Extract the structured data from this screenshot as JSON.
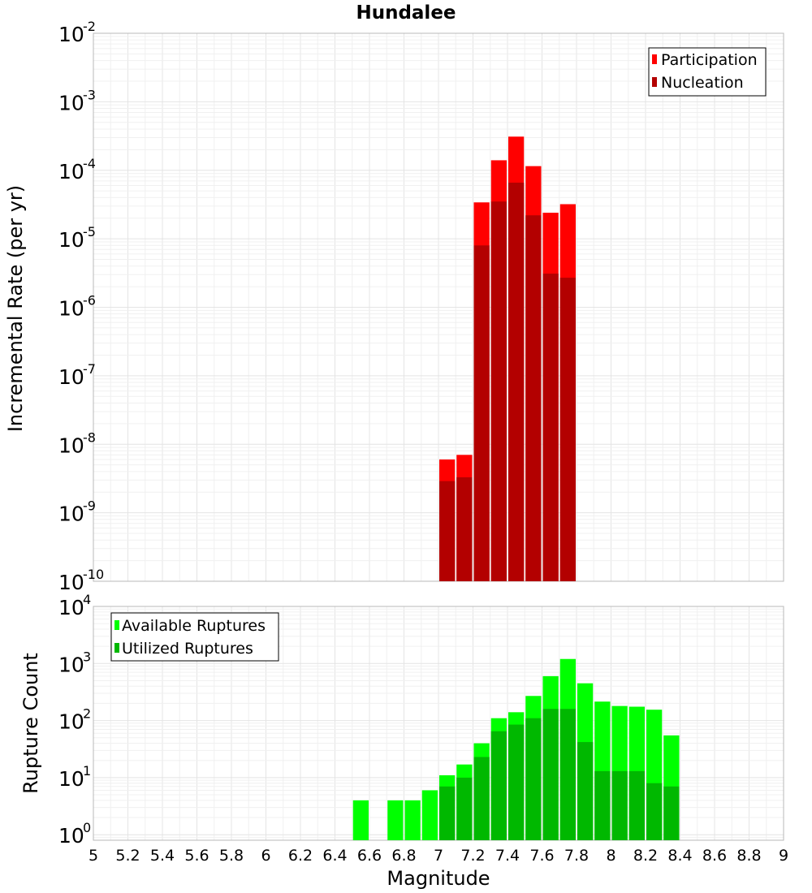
{
  "chart_data": [
    {
      "type": "bar",
      "title": "Hundalee",
      "xlabel": "",
      "ylabel": "Incremental Rate (per yr)",
      "yscale": "log",
      "ylim": [
        1e-10,
        0.01
      ],
      "xlim": [
        5,
        9
      ],
      "bin_width": 0.1,
      "legend_position": "top-right",
      "x": [
        7.05,
        7.15,
        7.25,
        7.35,
        7.45,
        7.55,
        7.65,
        7.75
      ],
      "series": [
        {
          "name": "Participation",
          "color": "#ff0000",
          "values": [
            6e-09,
            7e-09,
            3.4e-05,
            0.00014,
            0.00031,
            0.000115,
            2.4e-05,
            3.2e-05
          ]
        },
        {
          "name": "Nucleation",
          "color": "#b30000",
          "values": [
            2.9e-09,
            3.3e-09,
            8e-06,
            3.5e-05,
            6.6e-05,
            2.2e-05,
            3.1e-06,
            2.7e-06
          ]
        }
      ]
    },
    {
      "type": "bar",
      "title": "",
      "xlabel": "Magnitude",
      "ylabel": "Rupture Count",
      "yscale": "log",
      "ylim": [
        0.8,
        10000
      ],
      "xlim": [
        5,
        9
      ],
      "bin_width": 0.1,
      "legend_position": "top-left",
      "x": [
        6.55,
        6.75,
        6.85,
        6.95,
        7.05,
        7.15,
        7.25,
        7.35,
        7.45,
        7.55,
        7.65,
        7.75,
        7.85,
        7.95,
        8.05,
        8.15,
        8.25,
        8.35
      ],
      "series": [
        {
          "name": "Available Ruptures",
          "color": "#00ff00",
          "values": [
            4,
            4,
            4,
            6,
            11,
            17,
            40,
            110,
            140,
            270,
            600,
            1200,
            450,
            215,
            180,
            175,
            155,
            55
          ]
        },
        {
          "name": "Utilized Ruptures",
          "color": "#00b800",
          "values": [
            0,
            0,
            0,
            0,
            7,
            10,
            23,
            65,
            85,
            110,
            160,
            160,
            42,
            13,
            13,
            13,
            8,
            7
          ]
        }
      ],
      "x_ticks": [
        "5",
        "5.2",
        "5.4",
        "5.6",
        "5.8",
        "6",
        "6.2",
        "6.4",
        "6.6",
        "6.8",
        "7",
        "7.2",
        "7.4",
        "7.6",
        "7.8",
        "8",
        "8.2",
        "8.4",
        "8.6",
        "8.8",
        "9"
      ]
    }
  ],
  "top_y_ticks": [
    {
      "base": "10",
      "exp": "-2"
    },
    {
      "base": "10",
      "exp": "-3"
    },
    {
      "base": "10",
      "exp": "-4"
    },
    {
      "base": "10",
      "exp": "-5"
    },
    {
      "base": "10",
      "exp": "-6"
    },
    {
      "base": "10",
      "exp": "-7"
    },
    {
      "base": "10",
      "exp": "-8"
    },
    {
      "base": "10",
      "exp": "-9"
    },
    {
      "base": "10",
      "exp": "-10"
    }
  ],
  "bottom_y_ticks": [
    {
      "base": "10",
      "exp": "4"
    },
    {
      "base": "10",
      "exp": "3"
    },
    {
      "base": "10",
      "exp": "2"
    },
    {
      "base": "10",
      "exp": "1"
    },
    {
      "base": "10",
      "exp": "0"
    }
  ],
  "colors": {
    "participation": "#ff0000",
    "nucleation": "#b30000",
    "available": "#00ff00",
    "utilized": "#00b800"
  }
}
